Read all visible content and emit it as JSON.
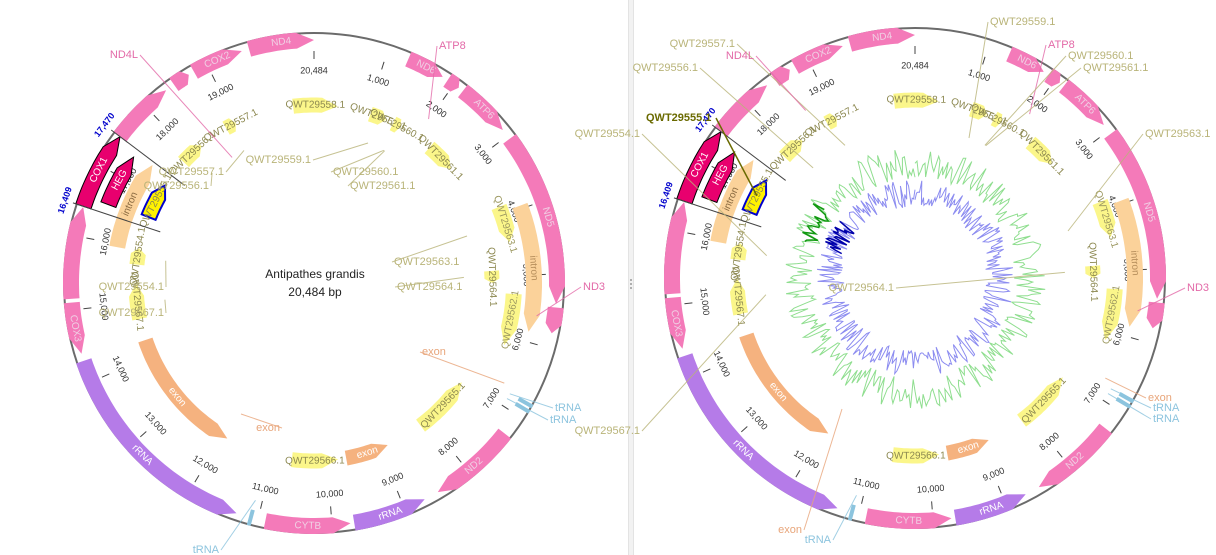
{
  "plasmid": {
    "name": "Antipathes grandis",
    "length_label": "20,484 bp",
    "length": 20484
  },
  "colors": {
    "cds": "#f47ab9",
    "cds_selected": "#e8006e",
    "orf": "#fbf68a",
    "orf_selected": "#fff200",
    "intron": "#fbd29a",
    "exon": "#f5b27f",
    "rrna": "#b57be8",
    "trna": "#8cc4de",
    "misc_feature": "#ff9ad0",
    "selection": "#0000cc",
    "gc_skew": "#8c8cf0",
    "gc_content": "#8fde8f"
  },
  "ticks": [
    {
      "label": "20,484",
      "pos": 20484
    },
    {
      "label": "1,000",
      "pos": 1000
    },
    {
      "label": "2,000",
      "pos": 2000
    },
    {
      "label": "3,000",
      "pos": 3000
    },
    {
      "label": "4,000",
      "pos": 4000
    },
    {
      "label": "5,000",
      "pos": 5000
    },
    {
      "label": "6,000",
      "pos": 6000
    },
    {
      "label": "7,000",
      "pos": 7000
    },
    {
      "label": "8,000",
      "pos": 8000
    },
    {
      "label": "9,000",
      "pos": 9000
    },
    {
      "label": "10,000",
      "pos": 10000
    },
    {
      "label": "11,000",
      "pos": 11000
    },
    {
      "label": "12,000",
      "pos": 12000
    },
    {
      "label": "13,000",
      "pos": 13000
    },
    {
      "label": "14,000",
      "pos": 14000
    },
    {
      "label": "15,000",
      "pos": 15000
    },
    {
      "label": "16,000",
      "pos": 16000
    },
    {
      "label": "17,000",
      "pos": 17000
    },
    {
      "label": "18,000",
      "pos": 18000
    },
    {
      "label": "19,000",
      "pos": 19000
    }
  ],
  "selection": {
    "start_label": "16,409",
    "end_label": "17,470",
    "start": 16409,
    "end": 17470
  },
  "features": {
    "outer": [
      {
        "label": "ND4",
        "type": "cds",
        "start": 19600,
        "end": 20484,
        "dir": 1,
        "show_label": true
      },
      {
        "label": "ND6",
        "type": "cds",
        "start": 1300,
        "end": 1820,
        "dir": 1,
        "show_label": true
      },
      {
        "label": "ATP8",
        "type": "cds",
        "start": 1900,
        "end": 2080,
        "dir": 1,
        "show_label": false
      },
      {
        "label": "ATP6",
        "type": "cds",
        "start": 2150,
        "end": 2900,
        "dir": 1,
        "show_label": true
      },
      {
        "label": "ND5",
        "type": "cds",
        "start": 3050,
        "end": 5400,
        "dir": 1,
        "show_label": true
      },
      {
        "label": "ND3",
        "type": "cds",
        "start": 5450,
        "end": 5800,
        "dir": 1,
        "show_label": false
      },
      {
        "label": "ND2",
        "type": "cds",
        "start": 7300,
        "end": 8500,
        "dir": 1,
        "show_label": true
      },
      {
        "label": "rRNA",
        "type": "rrna",
        "start": 8700,
        "end": 9700,
        "dir": -1,
        "show_label": true
      },
      {
        "label": "CYTB",
        "type": "cds",
        "start": 9750,
        "end": 10900,
        "dir": -1,
        "show_label": true
      },
      {
        "label": "rRNA",
        "type": "rrna",
        "start": 11300,
        "end": 14300,
        "dir": -1,
        "show_label": true
      },
      {
        "label": "COX3",
        "type": "cds",
        "start": 14400,
        "end": 15100,
        "dir": -1,
        "show_label": true
      },
      {
        "label": "",
        "type": "cds",
        "start": 15150,
        "end": 16400,
        "dir": 1,
        "show_label": false
      },
      {
        "label": "COX1",
        "type": "cds_selected",
        "start": 16409,
        "end": 17470,
        "dir": 1,
        "show_label": true
      },
      {
        "label": "",
        "type": "cds",
        "start": 17470,
        "end": 18350,
        "dir": 1,
        "show_label": false
      },
      {
        "label": "ND4L",
        "type": "cds",
        "start": 18480,
        "end": 18720,
        "dir": 1,
        "show_label": false
      },
      {
        "label": "COX2",
        "type": "cds",
        "start": 18800,
        "end": 19500,
        "dir": 1,
        "show_label": true
      }
    ],
    "trna": [
      {
        "label": "tRNA",
        "pos": 6800
      },
      {
        "label": "tRNA",
        "pos": 6880
      },
      {
        "label": "tRNA",
        "pos": 11100
      }
    ],
    "ring2": [
      {
        "label": "HEG",
        "type": "cds_selected",
        "start": 16550,
        "end": 17350,
        "dir": 1
      },
      {
        "label": "intron",
        "type": "intron",
        "start": 3950,
        "end": 5850,
        "dir": 1
      }
    ],
    "ring3": [
      {
        "label": "intron",
        "type": "intron",
        "start": 15950,
        "end": 17420,
        "dir": 1
      },
      {
        "label": "QWT29563.1",
        "type": "orf",
        "start": 3850,
        "end": 4450,
        "dir": 1
      },
      {
        "label": "QWT29562.1",
        "type": "orf",
        "start": 5300,
        "end": 6150,
        "dir": 1
      }
    ],
    "ring4": [
      {
        "label": "QWT29555.1",
        "type": "orf_selected",
        "start": 16600,
        "end": 17250,
        "dir": 1
      },
      {
        "label": "QWT29558.1",
        "type": "orf",
        "start": 20100,
        "end": 430,
        "dir": 1
      },
      {
        "label": "QWT29559.1",
        "type": "orf",
        "start": 1050,
        "end": 1350,
        "dir": 1
      },
      {
        "label": "QWT29560.1",
        "type": "orf",
        "start": 1500,
        "end": 1650,
        "dir": 1
      },
      {
        "label": "QWT29561.1",
        "type": "orf",
        "start": 2300,
        "end": 2850,
        "dir": 1
      },
      {
        "label": "QWT29564.1",
        "type": "orf",
        "start": 4900,
        "end": 5120,
        "dir": 1
      },
      {
        "label": "QWT29565.1",
        "type": "orf",
        "start": 7050,
        "end": 8150,
        "dir": -1
      },
      {
        "label": "QWT29566.1",
        "type": "orf",
        "start": 9800,
        "end": 10650,
        "dir": -1
      },
      {
        "label": "exon",
        "type": "exon",
        "start": 8850,
        "end": 9650,
        "dir": -1
      },
      {
        "label": "exon",
        "type": "exon",
        "start": 11900,
        "end": 14300,
        "dir": -1
      },
      {
        "label": "QWT29567.1",
        "type": "orf",
        "start": 14700,
        "end": 15350,
        "dir": 1
      },
      {
        "label": "QWT29554.1",
        "type": "orf",
        "start": 15700,
        "end": 16000,
        "dir": 1
      },
      {
        "label": "QWT29556.1",
        "type": "orf",
        "start": 17800,
        "end": 18250,
        "dir": 1
      },
      {
        "label": "QWT29557.1",
        "type": "orf",
        "start": 18800,
        "end": 19000,
        "dir": 1
      }
    ]
  },
  "left_callouts": [
    {
      "text": "ND4L",
      "color": "#e36aa8",
      "pos": 18600,
      "r": 150,
      "tx": 140,
      "ty": 55
    },
    {
      "text": "ATP8",
      "color": "#e36aa8",
      "pos": 1990,
      "r": 200,
      "tx": 437,
      "ty": 46
    },
    {
      "text": "ND3",
      "color": "#e36aa8",
      "pos": 5600,
      "r": 225,
      "tx": 581,
      "ty": 287
    },
    {
      "text": "QWT29557.1",
      "color": "#b9b479",
      "pos": 18900,
      "r": 150,
      "tx": 226,
      "ty": 172
    },
    {
      "text": "QWT29556.1",
      "color": "#b9b479",
      "pos": 18050,
      "r": 150,
      "tx": 211,
      "ty": 186
    },
    {
      "text": "QWT29559.1",
      "color": "#b9b479",
      "pos": 1200,
      "r": 150,
      "tx": 313,
      "ty": 160
    },
    {
      "text": "QWT29560.1",
      "color": "#b9b479",
      "pos": 1580,
      "r": 150,
      "tx": 331,
      "ty": 172
    },
    {
      "text": "QWT29561.1",
      "color": "#b9b479",
      "pos": 1600,
      "r": 150,
      "tx": 348,
      "ty": 186
    },
    {
      "text": "QWT29563.1",
      "color": "#b9b479",
      "pos": 4150,
      "r": 160,
      "tx": 392,
      "ty": 262
    },
    {
      "text": "QWT29564.1",
      "color": "#b9b479",
      "pos": 5000,
      "r": 150,
      "tx": 395,
      "ty": 287
    },
    {
      "text": "QWT29554.1",
      "color": "#b9b479",
      "pos": 15850,
      "r": 150,
      "tx": 166,
      "ty": 287
    },
    {
      "text": "QWT29567.1",
      "color": "#b9b479",
      "pos": 15000,
      "r": 150,
      "tx": 166,
      "ty": 313
    },
    {
      "text": "exon",
      "color": "#e8a57a",
      "pos": 6700,
      "r": 215,
      "tx": 420,
      "ty": 352
    },
    {
      "text": "exon",
      "color": "#e8a57a",
      "pos": 11900,
      "r": 150,
      "tx": 282,
      "ty": 428
    },
    {
      "text": "tRNA",
      "color": "#8cc4de",
      "pos": 6800,
      "r": 225,
      "tx": 553,
      "ty": 408
    },
    {
      "text": "tRNA",
      "color": "#8cc4de",
      "pos": 6880,
      "r": 225,
      "tx": 548,
      "ty": 420
    },
    {
      "text": "tRNA",
      "color": "#8cc4de",
      "pos": 11100,
      "r": 225,
      "tx": 221,
      "ty": 550
    }
  ],
  "right_callouts": [
    {
      "text": "QWT29559.1",
      "color": "#b9b479",
      "pos": 1200,
      "r": 150,
      "tx": 354,
      "ty": 22
    },
    {
      "text": "QWT29557.1",
      "color": "#b9b479",
      "pos": 18900,
      "r": 150,
      "tx": 103,
      "ty": 44
    },
    {
      "text": "ND4L",
      "color": "#e36aa8",
      "pos": 18600,
      "r": 200,
      "tx": 122,
      "ty": 56
    },
    {
      "text": "ATP8",
      "color": "#e36aa8",
      "pos": 1990,
      "r": 200,
      "tx": 412,
      "ty": 45
    },
    {
      "text": "QWT29560.1",
      "color": "#b9b479",
      "pos": 1580,
      "r": 150,
      "tx": 432,
      "ty": 56
    },
    {
      "text": "QWT29561.1",
      "color": "#b9b479",
      "pos": 1600,
      "r": 150,
      "tx": 447,
      "ty": 68
    },
    {
      "text": "QWT29556.1",
      "color": "#b9b479",
      "pos": 18050,
      "r": 150,
      "tx": 66,
      "ty": 68
    },
    {
      "text": "QWT29554.1",
      "color": "#b9b479",
      "pos": 15850,
      "r": 150,
      "tx": 8,
      "ty": 134
    },
    {
      "text": "QWT29563.1",
      "color": "#b9b479",
      "pos": 4150,
      "r": 160,
      "tx": 509,
      "ty": 134
    },
    {
      "text": "QWT29564.1",
      "color": "#b9b479",
      "pos": 5000,
      "r": 150,
      "tx": 262,
      "ty": 288
    },
    {
      "text": "ND3",
      "color": "#e36aa8",
      "pos": 5600,
      "r": 225,
      "tx": 551,
      "ty": 288
    },
    {
      "text": "exon",
      "color": "#e8a57a",
      "pos": 6700,
      "r": 215,
      "tx": 512,
      "ty": 398
    },
    {
      "text": "tRNA",
      "color": "#8cc4de",
      "pos": 6800,
      "r": 225,
      "tx": 517,
      "ty": 408
    },
    {
      "text": "tRNA",
      "color": "#8cc4de",
      "pos": 6880,
      "r": 225,
      "tx": 517,
      "ty": 419
    },
    {
      "text": "QWT29567.1",
      "color": "#b9b479",
      "pos": 15000,
      "r": 150,
      "tx": 8,
      "ty": 431
    },
    {
      "text": "exon",
      "color": "#e8a57a",
      "pos": 11900,
      "r": 150,
      "tx": 170,
      "ty": 530
    },
    {
      "text": "tRNA",
      "color": "#8cc4de",
      "pos": 11100,
      "r": 225,
      "tx": 199,
      "ty": 540
    }
  ],
  "selected_label": "QWT29555.1",
  "gc_seed": 7
}
